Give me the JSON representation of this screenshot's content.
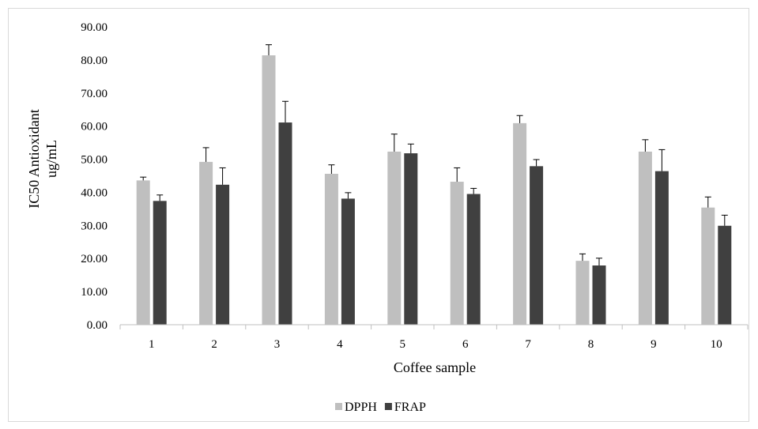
{
  "chart_data": {
    "type": "bar",
    "title": "",
    "xlabel": "Coffee sample",
    "ylabel_lines": [
      "IC50 Antioxidant",
      "ug/mL"
    ],
    "ylim": [
      0,
      90
    ],
    "yticks": [
      "0.00",
      "10.00",
      "20.00",
      "30.00",
      "40.00",
      "50.00",
      "60.00",
      "70.00",
      "80.00",
      "90.00"
    ],
    "categories": [
      "1",
      "2",
      "3",
      "4",
      "5",
      "6",
      "7",
      "8",
      "9",
      "10"
    ],
    "grid": false,
    "legend_position": "bottom",
    "series": [
      {
        "name": "DPPH",
        "color": "#bfbfbf",
        "values": [
          43.6,
          49.2,
          81.4,
          45.6,
          52.3,
          43.2,
          60.9,
          19.3,
          52.3,
          35.4
        ],
        "errors": [
          1.0,
          4.3,
          3.2,
          2.7,
          5.3,
          4.2,
          2.3,
          2.1,
          3.6,
          3.2
        ]
      },
      {
        "name": "FRAP",
        "color": "#404040",
        "values": [
          37.4,
          42.3,
          61.1,
          38.1,
          51.8,
          39.5,
          47.9,
          17.9,
          46.4,
          29.9
        ],
        "errors": [
          1.8,
          5.1,
          6.4,
          1.8,
          2.8,
          1.7,
          2.0,
          2.2,
          6.5,
          3.2
        ]
      }
    ]
  }
}
